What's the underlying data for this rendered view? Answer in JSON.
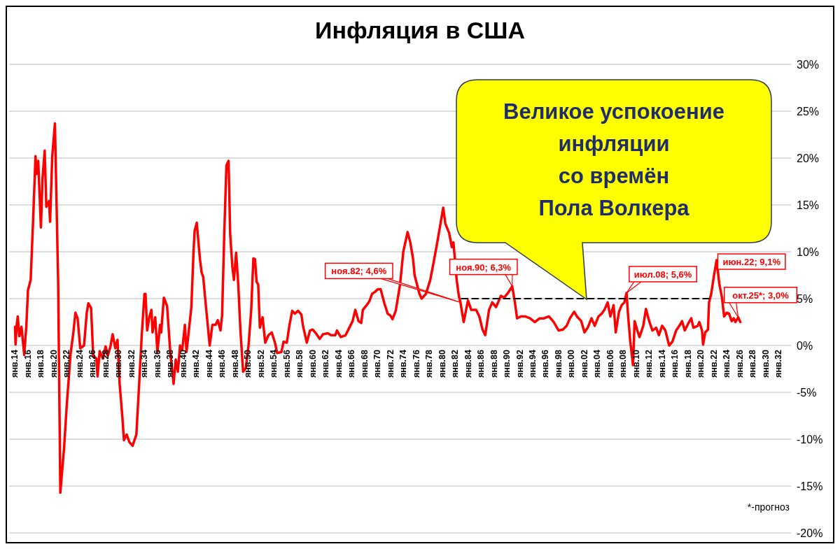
{
  "chart_data": {
    "type": "line",
    "title": "Инфляция в США",
    "series": [
      {
        "type": "line",
        "color": "#ff0000",
        "line_style": "solid",
        "x": [
          "1914-01",
          "1914-02",
          "1914-04",
          "1914-06",
          "1914-09",
          "1915-01",
          "1915-06",
          "1915-10",
          "1916-01",
          "1916-06",
          "1916-10",
          "1917-03",
          "1917-05",
          "1917-08",
          "1918-01",
          "1918-04",
          "1918-08",
          "1918-11",
          "1919-04",
          "1919-06",
          "1919-10",
          "1920-03",
          "1920-09",
          "1921-01",
          "1921-08",
          "1922-01",
          "1922-08",
          "1923-01",
          "1923-05",
          "1923-09",
          "1924-02",
          "1924-09",
          "1925-02",
          "1925-05",
          "1925-10",
          "1926-02",
          "1926-08",
          "1926-10",
          "1927-02",
          "1927-08",
          "1928-01",
          "1928-05",
          "1928-10",
          "1929-02",
          "1929-07",
          "1929-11",
          "1930-03",
          "1930-08",
          "1930-11",
          "1931-04",
          "1931-09",
          "1932-03",
          "1932-10",
          "1933-03",
          "1933-08",
          "1934-01",
          "1934-03",
          "1934-06",
          "1934-10",
          "1935-02",
          "1935-04",
          "1935-09",
          "1936-01",
          "1936-06",
          "1936-08",
          "1937-01",
          "1937-07",
          "1938-01",
          "1938-07",
          "1938-11",
          "1939-03",
          "1939-07",
          "1939-11",
          "1940-04",
          "1940-07",
          "1940-11",
          "1941-04",
          "1941-08",
          "1941-10",
          "1942-02",
          "1942-05",
          "1942-08",
          "1942-11",
          "1943-02",
          "1943-05",
          "1943-09",
          "1944-02",
          "1944-07",
          "1945-01",
          "1945-05",
          "1945-10",
          "1946-01",
          "1946-05",
          "1946-09",
          "1947-01",
          "1947-04",
          "1947-08",
          "1947-11",
          "1948-03",
          "1948-07",
          "1948-11",
          "1949-04",
          "1949-09",
          "1950-02",
          "1950-07",
          "1950-11",
          "1951-02",
          "1951-05",
          "1951-08",
          "1951-11",
          "1952-04",
          "1952-09",
          "1953-03",
          "1953-09",
          "1954-03",
          "1954-07",
          "1955-03",
          "1955-07",
          "1956-01",
          "1956-06",
          "1956-11",
          "1957-04",
          "1957-10",
          "1958-04",
          "1958-07",
          "1959-02",
          "1959-08",
          "1960-01",
          "1960-07",
          "1961-02",
          "1961-08",
          "1962-05",
          "1962-11",
          "1963-07",
          "1963-10",
          "1964-05",
          "1965-02",
          "1965-08",
          "1966-03",
          "1966-08",
          "1967-02",
          "1967-07",
          "1967-10",
          "1968-05",
          "1968-10",
          "1969-03",
          "1969-08",
          "1970-02",
          "1970-07",
          "1971-02",
          "1971-08",
          "1972-01",
          "1972-05",
          "1972-11",
          "1973-07",
          "1974-01",
          "1974-09",
          "1975-02",
          "1975-07",
          "1975-10",
          "1976-07",
          "1976-11",
          "1977-07",
          "1978-03",
          "1978-09",
          "1979-04",
          "1979-10",
          "1980-03",
          "1980-07",
          "1981-02",
          "1981-07",
          "1981-10",
          "1982-04",
          "1982-08",
          "1982-11",
          "1983-05",
          "1984-01",
          "1984-07",
          "1985-04",
          "1985-10",
          "1986-04",
          "1986-09",
          "1987-04",
          "1987-10",
          "1988-05",
          "1989-02",
          "1989-08",
          "1990-03",
          "1990-11",
          "1991-04",
          "1991-08",
          "1992-03",
          "1992-11",
          "1993-08",
          "1994-05",
          "1995-02",
          "1995-10",
          "1996-07",
          "1997-04",
          "1998-01",
          "1998-09",
          "1999-04",
          "1999-10",
          "2000-06",
          "2000-11",
          "2001-07",
          "2002-01",
          "2002-07",
          "2003-02",
          "2003-08",
          "2004-03",
          "2004-09",
          "2005-02",
          "2005-08",
          "2006-01",
          "2006-07",
          "2006-11",
          "2007-05",
          "2007-10",
          "2008-03",
          "2008-07",
          "2008-10",
          "2009-02",
          "2009-07",
          "2009-10",
          "2010-03",
          "2010-07",
          "2011-02",
          "2011-07",
          "2012-01",
          "2012-07",
          "2013-02",
          "2013-07",
          "2014-01",
          "2014-07",
          "2015-02",
          "2015-08",
          "2016-03",
          "2016-09",
          "2017-02",
          "2017-07",
          "2018-01",
          "2018-07",
          "2018-11",
          "2019-07",
          "2019-10",
          "2020-03",
          "2020-05",
          "2020-09",
          "2021-02",
          "2021-04",
          "2021-08",
          "2022-01",
          "2022-06",
          "2022-11",
          "2023-04",
          "2023-08",
          "2024-01",
          "2024-05",
          "2024-10",
          "2025-02",
          "2025-05",
          "2025-10",
          "2026-02"
        ],
        "values": [
          2.0,
          0.1,
          2.1,
          3.1,
          1.0,
          2.0,
          -1.0,
          2.1,
          5.9,
          7.0,
          12.6,
          20.2,
          18.3,
          19.7,
          12.6,
          17.8,
          20.8,
          14.8,
          15.4,
          13.2,
          20.2,
          23.7,
          6.7,
          -15.7,
          -10.9,
          -6.3,
          -0.9,
          1.3,
          3.5,
          2.9,
          -0.3,
          0.0,
          3.5,
          4.5,
          4.0,
          -1.1,
          -1.4,
          -3.3,
          -0.6,
          -1.4,
          -0.1,
          -1.1,
          -0.1,
          1.2,
          -0.3,
          0.6,
          -4.1,
          -7.6,
          -10.1,
          -9.5,
          -10.3,
          -10.7,
          -9.5,
          -4.3,
          1.1,
          5.5,
          5.5,
          1.6,
          3.0,
          3.8,
          1.4,
          3.0,
          -0.7,
          2.2,
          1.4,
          5.1,
          4.2,
          -0.8,
          -4.1,
          -1.5,
          -2.8,
          0.0,
          -0.5,
          2.2,
          -0.7,
          1.4,
          4.1,
          10.0,
          12.2,
          13.1,
          11.1,
          9.2,
          7.8,
          7.3,
          5.4,
          3.0,
          0.0,
          2.2,
          2.2,
          2.7,
          1.6,
          3.2,
          11.9,
          19.2,
          19.7,
          11.9,
          8.4,
          7.0,
          9.9,
          6.5,
          1.6,
          -2.8,
          -2.4,
          0.0,
          3.8,
          9.3,
          9.2,
          6.8,
          6.5,
          1.9,
          3.0,
          0.3,
          1.1,
          1.4,
          0.3,
          -0.8,
          -0.7,
          0.4,
          0.3,
          2.2,
          3.7,
          3.4,
          3.7,
          3.3,
          2.1,
          0.3,
          1.6,
          1.7,
          1.3,
          0.7,
          1.2,
          1.3,
          1.1,
          1.1,
          1.6,
          0.9,
          1.1,
          1.8,
          2.6,
          3.8,
          2.6,
          2.4,
          3.8,
          4.3,
          4.7,
          5.5,
          5.7,
          6.0,
          6.0,
          4.5,
          3.4,
          3.2,
          2.8,
          3.7,
          6.5,
          10.0,
          12.1,
          11.0,
          9.3,
          7.5,
          5.5,
          5.0,
          5.5,
          7.0,
          8.8,
          11.0,
          13.0,
          14.7,
          13.0,
          12.0,
          10.5,
          11.0,
          7.0,
          5.3,
          4.6,
          2.5,
          4.8,
          3.8,
          3.8,
          3.1,
          1.7,
          1.1,
          3.8,
          4.6,
          4.1,
          5.3,
          5.1,
          5.6,
          6.3,
          4.6,
          2.9,
          3.1,
          3.1,
          2.9,
          2.5,
          2.9,
          2.9,
          3.1,
          2.5,
          1.6,
          1.7,
          2.1,
          2.9,
          3.6,
          3.1,
          2.6,
          1.4,
          1.9,
          2.9,
          2.1,
          3.1,
          3.4,
          3.8,
          4.6,
          3.1,
          4.3,
          1.4,
          3.6,
          4.3,
          4.6,
          5.6,
          3.1,
          0.4,
          -2.1,
          2.6,
          1.6,
          0.9,
          2.1,
          3.9,
          2.6,
          1.6,
          1.9,
          1.1,
          2.1,
          1.6,
          0.0,
          0.4,
          1.6,
          2.1,
          2.6,
          1.6,
          2.3,
          2.9,
          1.9,
          2.1,
          2.5,
          1.6,
          0.1,
          1.4,
          1.7,
          4.6,
          5.5,
          7.4,
          9.1,
          6.6,
          5.1,
          3.1,
          3.5,
          3.4,
          2.6,
          2.9,
          2.5,
          3.0,
          2.5
        ]
      },
      {
        "type": "line",
        "color": "#000000",
        "line_style": "dashed",
        "x": [
          "1983-01",
          "2021-06"
        ],
        "values": [
          5.0,
          5.0
        ]
      }
    ],
    "xlim": [
      "1913-02",
      "2033-12"
    ],
    "xticks": [
      {
        "value": "1914-01",
        "label": "янв.14"
      },
      {
        "value": "1916-01",
        "label": "янв.16"
      },
      {
        "value": "1918-01",
        "label": "янв.18"
      },
      {
        "value": "1920-01",
        "label": "янв.20"
      },
      {
        "value": "1922-01",
        "label": "янв.22"
      },
      {
        "value": "1924-01",
        "label": "янв.24"
      },
      {
        "value": "1926-01",
        "label": "янв.26"
      },
      {
        "value": "1928-01",
        "label": "янв.28"
      },
      {
        "value": "1930-01",
        "label": "янв.30"
      },
      {
        "value": "1932-01",
        "label": "янв.32"
      },
      {
        "value": "1934-01",
        "label": "янв.34"
      },
      {
        "value": "1936-01",
        "label": "янв.36"
      },
      {
        "value": "1938-01",
        "label": "янв.38"
      },
      {
        "value": "1940-01",
        "label": "янв.40"
      },
      {
        "value": "1942-01",
        "label": "янв.42"
      },
      {
        "value": "1944-01",
        "label": "янв.44"
      },
      {
        "value": "1946-01",
        "label": "янв.46"
      },
      {
        "value": "1948-01",
        "label": "янв.48"
      },
      {
        "value": "1950-01",
        "label": "янв.50"
      },
      {
        "value": "1952-01",
        "label": "янв.52"
      },
      {
        "value": "1954-01",
        "label": "янв.54"
      },
      {
        "value": "1956-01",
        "label": "янв.56"
      },
      {
        "value": "1958-01",
        "label": "янв.58"
      },
      {
        "value": "1960-01",
        "label": "янв.60"
      },
      {
        "value": "1962-01",
        "label": "янв.62"
      },
      {
        "value": "1964-01",
        "label": "янв.64"
      },
      {
        "value": "1966-01",
        "label": "янв.66"
      },
      {
        "value": "1968-01",
        "label": "янв.68"
      },
      {
        "value": "1970-01",
        "label": "янв.70"
      },
      {
        "value": "1972-01",
        "label": "янв.72"
      },
      {
        "value": "1974-01",
        "label": "янв.74"
      },
      {
        "value": "1976-01",
        "label": "янв.76"
      },
      {
        "value": "1978-01",
        "label": "янв.78"
      },
      {
        "value": "1980-01",
        "label": "янв.80"
      },
      {
        "value": "1982-01",
        "label": "янв.82"
      },
      {
        "value": "1984-01",
        "label": "янв.84"
      },
      {
        "value": "1986-01",
        "label": "янв.86"
      },
      {
        "value": "1988-01",
        "label": "янв.88"
      },
      {
        "value": "1990-01",
        "label": "янв.90"
      },
      {
        "value": "1992-01",
        "label": "янв.92"
      },
      {
        "value": "1994-01",
        "label": "янв.94"
      },
      {
        "value": "1996-01",
        "label": "янв.96"
      },
      {
        "value": "1998-01",
        "label": "янв.98"
      },
      {
        "value": "2000-01",
        "label": "янв.00"
      },
      {
        "value": "2002-01",
        "label": "янв.02"
      },
      {
        "value": "2004-01",
        "label": "янв.04"
      },
      {
        "value": "2006-01",
        "label": "янв.06"
      },
      {
        "value": "2008-01",
        "label": "янв.08"
      },
      {
        "value": "2010-01",
        "label": "янв.10"
      },
      {
        "value": "2012-01",
        "label": "янв.12"
      },
      {
        "value": "2014-01",
        "label": "янв.14"
      },
      {
        "value": "2016-01",
        "label": "янв.16"
      },
      {
        "value": "2018-01",
        "label": "янв.18"
      },
      {
        "value": "2020-01",
        "label": "янв.20"
      },
      {
        "value": "2022-01",
        "label": "янв.22"
      },
      {
        "value": "2024-01",
        "label": "янв.24"
      },
      {
        "value": "2026-01",
        "label": "янв.26"
      },
      {
        "value": "2028-01",
        "label": "янв.28"
      },
      {
        "value": "2030-01",
        "label": "янв.30"
      },
      {
        "value": "2032-01",
        "label": "янв.32"
      }
    ],
    "ylim": [
      -20,
      30
    ],
    "yticks": [
      {
        "value": -20,
        "label": "-20%"
      },
      {
        "value": -15,
        "label": "-15%"
      },
      {
        "value": -10,
        "label": "-10%"
      },
      {
        "value": -5,
        "label": "-5%"
      },
      {
        "value": 0,
        "label": "0%"
      },
      {
        "value": 5,
        "label": "5%"
      },
      {
        "value": 10,
        "label": "10%"
      },
      {
        "value": 15,
        "label": "15%"
      },
      {
        "value": 20,
        "label": "20%"
      },
      {
        "value": 25,
        "label": "25%"
      },
      {
        "value": 30,
        "label": "30%"
      }
    ],
    "grid": "y",
    "annotations": [
      "Великое успокоение\nинфляции\nсо времён\nПола Волкера",
      {
        "text": "ноя.82; 4,6%",
        "x": "1982-11",
        "y": 4.6
      },
      {
        "text": "ноя.90; 6,3%",
        "x": "1990-11",
        "y": 6.3
      },
      {
        "text": "июл.08; 5,6%",
        "x": "2008-07",
        "y": 5.6
      },
      {
        "text": "июн.22; 9,1%",
        "x": "2022-06",
        "y": 9.1
      },
      {
        "text": "окт.25*; 3,0%",
        "x": "2025-10",
        "y": 3.0
      },
      "*-прогноз"
    ]
  }
}
